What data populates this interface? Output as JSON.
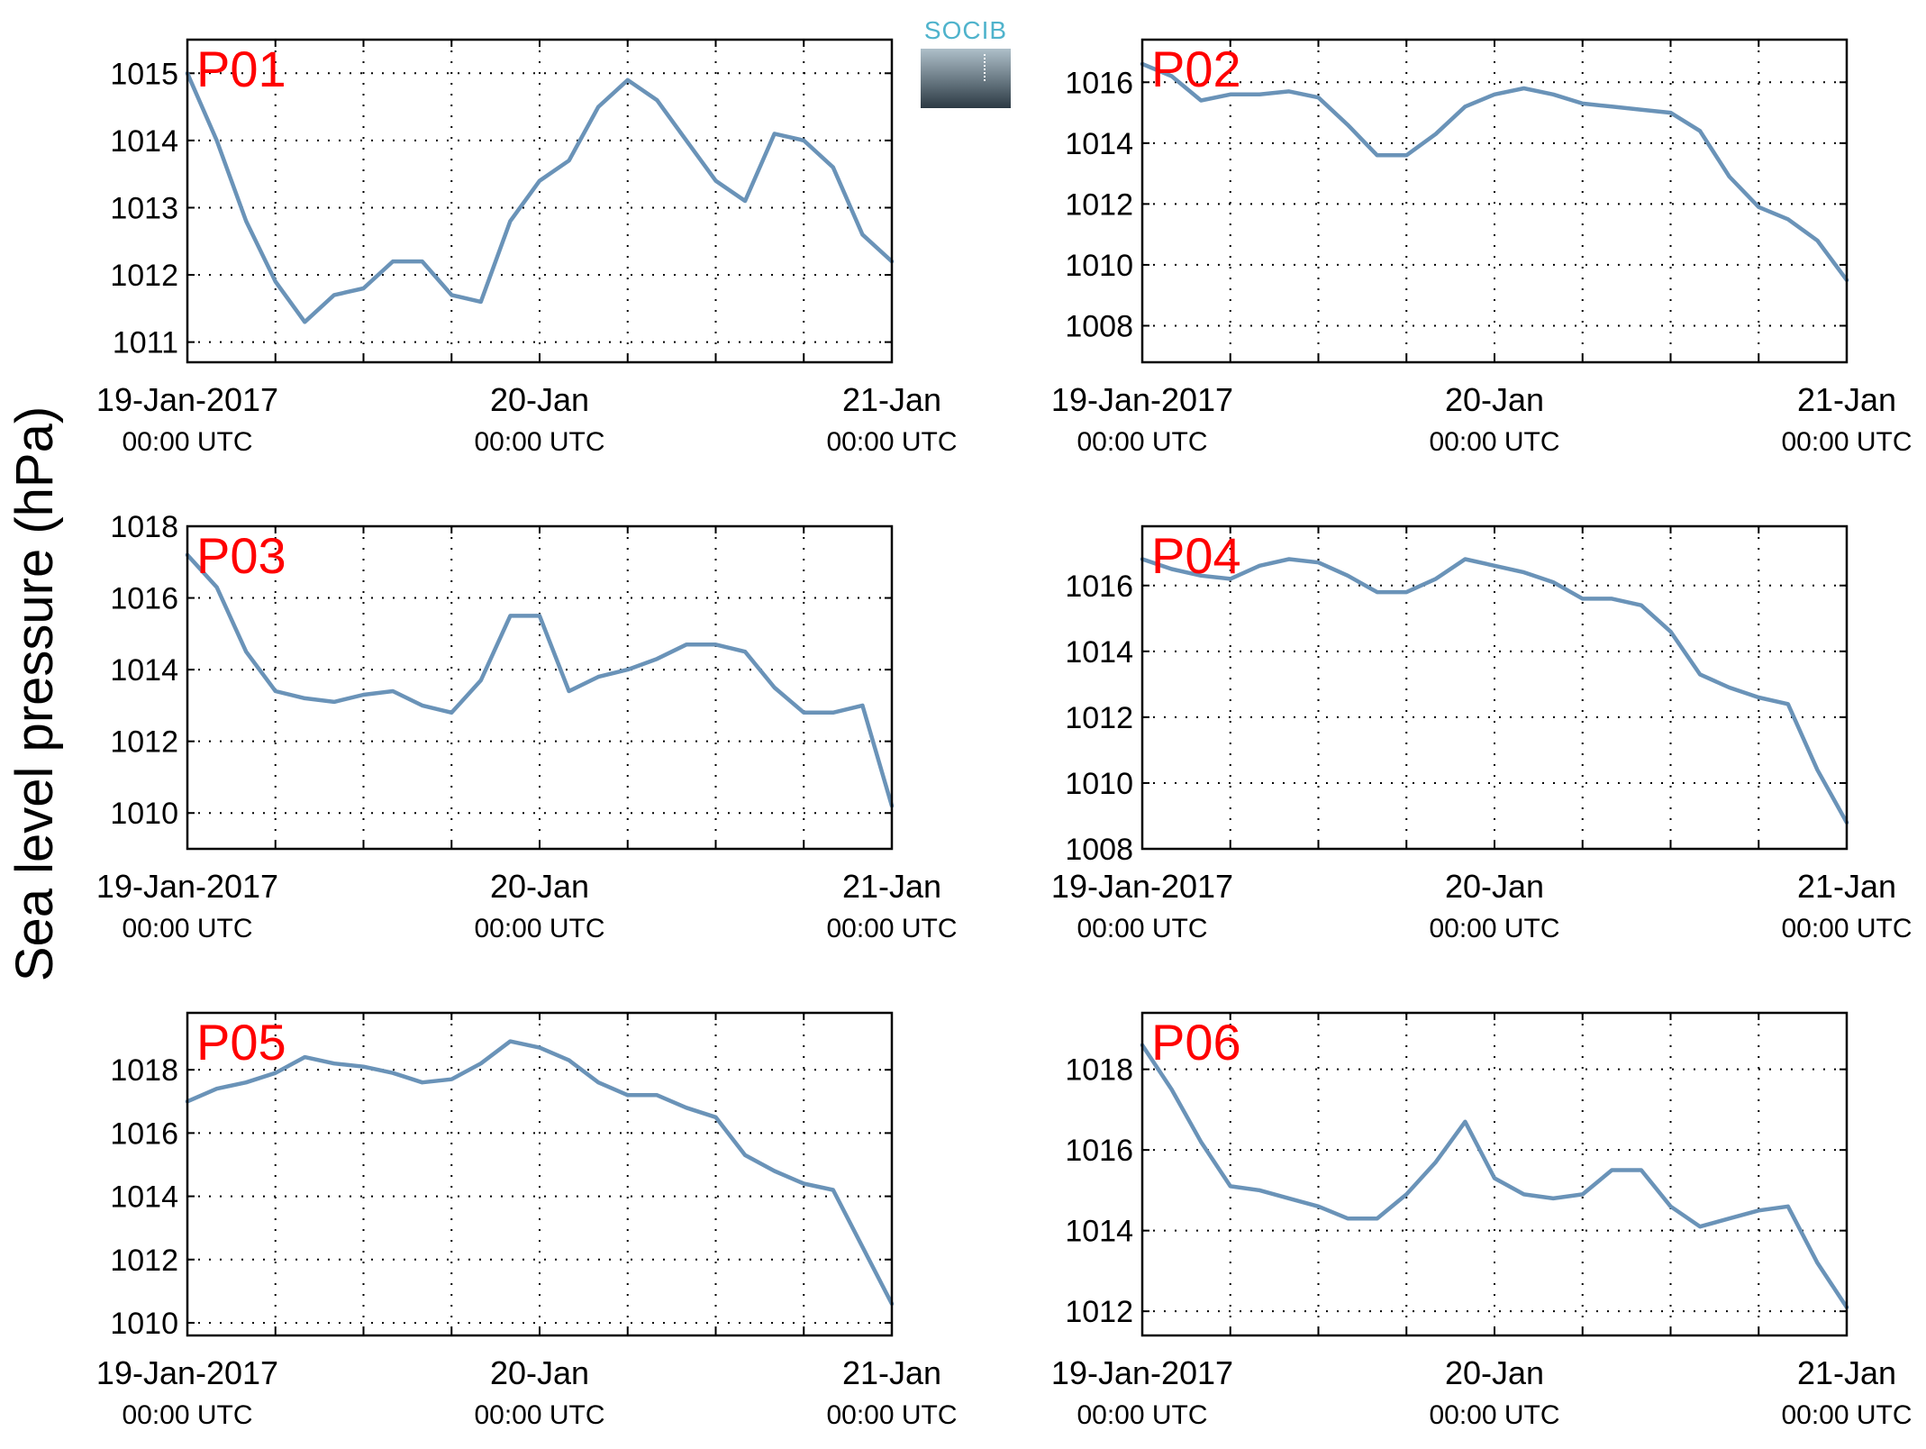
{
  "logo": {
    "text": "SOCIB"
  },
  "ylabel": "Sea level pressure (hPa)",
  "colors": {
    "line": "#6a93b8",
    "panel_label": "#ff0000",
    "axis": "#000000",
    "grid": "#000000"
  },
  "chart_data": [
    {
      "type": "line",
      "title": "P01",
      "x_tick_labels": [
        {
          "date": "19-Jan-2017",
          "time": "00:00 UTC"
        },
        {
          "date": "20-Jan",
          "time": "00:00 UTC"
        },
        {
          "date": "21-Jan",
          "time": "00:00 UTC"
        }
      ],
      "xlim": [
        "2017-01-19T00:00",
        "2017-01-21T00:00"
      ],
      "ylim": [
        1010.7,
        1015.5
      ],
      "yticks": [
        1011,
        1012,
        1013,
        1014,
        1015
      ],
      "grid": true,
      "series": [
        {
          "x": [
            "2017-01-19T00:00",
            "2017-01-19T02:00",
            "2017-01-19T04:00",
            "2017-01-19T06:00",
            "2017-01-19T08:00",
            "2017-01-19T10:00",
            "2017-01-19T12:00",
            "2017-01-19T14:00",
            "2017-01-19T16:00",
            "2017-01-19T18:00",
            "2017-01-19T20:00",
            "2017-01-19T22:00",
            "2017-01-20T00:00",
            "2017-01-20T02:00",
            "2017-01-20T04:00",
            "2017-01-20T06:00",
            "2017-01-20T08:00",
            "2017-01-20T10:00",
            "2017-01-20T12:00",
            "2017-01-20T14:00",
            "2017-01-20T16:00",
            "2017-01-20T18:00",
            "2017-01-20T20:00",
            "2017-01-20T22:00",
            "2017-01-21T00:00"
          ],
          "y": [
            1015.0,
            1014.0,
            1012.8,
            1011.9,
            1011.3,
            1011.7,
            1011.8,
            1012.2,
            1012.2,
            1011.7,
            1011.6,
            1012.8,
            1013.4,
            1013.7,
            1014.5,
            1014.9,
            1014.6,
            1014.0,
            1013.4,
            1013.1,
            1014.1,
            1014.0,
            1013.6,
            1012.6,
            1012.2
          ]
        }
      ]
    },
    {
      "type": "line",
      "title": "P02",
      "x_tick_labels": [
        {
          "date": "19-Jan-2017",
          "time": "00:00 UTC"
        },
        {
          "date": "20-Jan",
          "time": "00:00 UTC"
        },
        {
          "date": "21-Jan",
          "time": "00:00 UTC"
        }
      ],
      "xlim": [
        "2017-01-19T00:00",
        "2017-01-21T00:00"
      ],
      "ylim": [
        1006.8,
        1017.4
      ],
      "yticks": [
        1008,
        1010,
        1012,
        1014,
        1016
      ],
      "grid": true,
      "series": [
        {
          "x": [
            "2017-01-19T00:00",
            "2017-01-19T02:00",
            "2017-01-19T04:00",
            "2017-01-19T06:00",
            "2017-01-19T08:00",
            "2017-01-19T10:00",
            "2017-01-19T12:00",
            "2017-01-19T14:00",
            "2017-01-19T16:00",
            "2017-01-19T18:00",
            "2017-01-19T20:00",
            "2017-01-19T22:00",
            "2017-01-20T00:00",
            "2017-01-20T02:00",
            "2017-01-20T04:00",
            "2017-01-20T06:00",
            "2017-01-20T08:00",
            "2017-01-20T10:00",
            "2017-01-20T12:00",
            "2017-01-20T14:00",
            "2017-01-20T16:00",
            "2017-01-20T18:00",
            "2017-01-20T20:00",
            "2017-01-20T22:00",
            "2017-01-21T00:00"
          ],
          "y": [
            1016.6,
            1016.2,
            1015.4,
            1015.6,
            1015.6,
            1015.7,
            1015.5,
            1014.6,
            1013.6,
            1013.6,
            1014.3,
            1015.2,
            1015.6,
            1015.8,
            1015.6,
            1015.3,
            1015.2,
            1015.1,
            1015.0,
            1014.4,
            1012.9,
            1011.9,
            1011.5,
            1010.8,
            1009.5
          ]
        }
      ]
    },
    {
      "type": "line",
      "title": "P03",
      "x_tick_labels": [
        {
          "date": "19-Jan-2017",
          "time": "00:00 UTC"
        },
        {
          "date": "20-Jan",
          "time": "00:00 UTC"
        },
        {
          "date": "21-Jan",
          "time": "00:00 UTC"
        }
      ],
      "xlim": [
        "2017-01-19T00:00",
        "2017-01-21T00:00"
      ],
      "ylim": [
        1009.0,
        1018.0
      ],
      "yticks": [
        1010,
        1012,
        1014,
        1016,
        1018
      ],
      "grid": true,
      "series": [
        {
          "x": [
            "2017-01-19T00:00",
            "2017-01-19T02:00",
            "2017-01-19T04:00",
            "2017-01-19T06:00",
            "2017-01-19T08:00",
            "2017-01-19T10:00",
            "2017-01-19T12:00",
            "2017-01-19T14:00",
            "2017-01-19T16:00",
            "2017-01-19T18:00",
            "2017-01-19T20:00",
            "2017-01-19T22:00",
            "2017-01-20T00:00",
            "2017-01-20T02:00",
            "2017-01-20T04:00",
            "2017-01-20T06:00",
            "2017-01-20T08:00",
            "2017-01-20T10:00",
            "2017-01-20T12:00",
            "2017-01-20T14:00",
            "2017-01-20T16:00",
            "2017-01-20T18:00",
            "2017-01-20T20:00",
            "2017-01-20T22:00",
            "2017-01-21T00:00"
          ],
          "y": [
            1017.2,
            1016.3,
            1014.5,
            1013.4,
            1013.2,
            1013.1,
            1013.3,
            1013.4,
            1013.0,
            1012.8,
            1013.7,
            1015.5,
            1015.5,
            1013.4,
            1013.8,
            1014.0,
            1014.3,
            1014.7,
            1014.7,
            1014.5,
            1013.5,
            1012.8,
            1012.8,
            1013.0,
            1010.2
          ]
        }
      ]
    },
    {
      "type": "line",
      "title": "P04",
      "x_tick_labels": [
        {
          "date": "19-Jan-2017",
          "time": "00:00 UTC"
        },
        {
          "date": "20-Jan",
          "time": "00:00 UTC"
        },
        {
          "date": "21-Jan",
          "time": "00:00 UTC"
        }
      ],
      "xlim": [
        "2017-01-19T00:00",
        "2017-01-21T00:00"
      ],
      "ylim": [
        1008.0,
        1017.8
      ],
      "yticks": [
        1008,
        1010,
        1012,
        1014,
        1016
      ],
      "grid": true,
      "series": [
        {
          "x": [
            "2017-01-19T00:00",
            "2017-01-19T02:00",
            "2017-01-19T04:00",
            "2017-01-19T06:00",
            "2017-01-19T08:00",
            "2017-01-19T10:00",
            "2017-01-19T12:00",
            "2017-01-19T14:00",
            "2017-01-19T16:00",
            "2017-01-19T18:00",
            "2017-01-19T20:00",
            "2017-01-19T22:00",
            "2017-01-20T00:00",
            "2017-01-20T02:00",
            "2017-01-20T04:00",
            "2017-01-20T06:00",
            "2017-01-20T08:00",
            "2017-01-20T10:00",
            "2017-01-20T12:00",
            "2017-01-20T14:00",
            "2017-01-20T16:00",
            "2017-01-20T18:00",
            "2017-01-20T20:00",
            "2017-01-20T22:00",
            "2017-01-21T00:00"
          ],
          "y": [
            1016.8,
            1016.5,
            1016.3,
            1016.2,
            1016.6,
            1016.8,
            1016.7,
            1016.3,
            1015.8,
            1015.8,
            1016.2,
            1016.8,
            1016.6,
            1016.4,
            1016.1,
            1015.6,
            1015.6,
            1015.4,
            1014.6,
            1013.3,
            1012.9,
            1012.6,
            1012.4,
            1010.4,
            1008.8
          ]
        }
      ]
    },
    {
      "type": "line",
      "title": "P05",
      "x_tick_labels": [
        {
          "date": "19-Jan-2017",
          "time": "00:00 UTC"
        },
        {
          "date": "20-Jan",
          "time": "00:00 UTC"
        },
        {
          "date": "21-Jan",
          "time": "00:00 UTC"
        }
      ],
      "xlim": [
        "2017-01-19T00:00",
        "2017-01-21T00:00"
      ],
      "ylim": [
        1009.6,
        1019.8
      ],
      "yticks": [
        1010,
        1012,
        1014,
        1016,
        1018
      ],
      "grid": true,
      "series": [
        {
          "x": [
            "2017-01-19T00:00",
            "2017-01-19T02:00",
            "2017-01-19T04:00",
            "2017-01-19T06:00",
            "2017-01-19T08:00",
            "2017-01-19T10:00",
            "2017-01-19T12:00",
            "2017-01-19T14:00",
            "2017-01-19T16:00",
            "2017-01-19T18:00",
            "2017-01-19T20:00",
            "2017-01-19T22:00",
            "2017-01-20T00:00",
            "2017-01-20T02:00",
            "2017-01-20T04:00",
            "2017-01-20T06:00",
            "2017-01-20T08:00",
            "2017-01-20T10:00",
            "2017-01-20T12:00",
            "2017-01-20T14:00",
            "2017-01-20T16:00",
            "2017-01-20T18:00",
            "2017-01-20T20:00",
            "2017-01-20T22:00",
            "2017-01-21T00:00"
          ],
          "y": [
            1017.0,
            1017.4,
            1017.6,
            1017.9,
            1018.4,
            1018.2,
            1018.1,
            1017.9,
            1017.6,
            1017.7,
            1018.2,
            1018.9,
            1018.7,
            1018.3,
            1017.6,
            1017.2,
            1017.2,
            1016.8,
            1016.5,
            1015.3,
            1014.8,
            1014.4,
            1014.2,
            1012.4,
            1010.6
          ]
        }
      ]
    },
    {
      "type": "line",
      "title": "P06",
      "x_tick_labels": [
        {
          "date": "19-Jan-2017",
          "time": "00:00 UTC"
        },
        {
          "date": "20-Jan",
          "time": "00:00 UTC"
        },
        {
          "date": "21-Jan",
          "time": "00:00 UTC"
        }
      ],
      "xlim": [
        "2017-01-19T00:00",
        "2017-01-21T00:00"
      ],
      "ylim": [
        1011.4,
        1019.4
      ],
      "yticks": [
        1012,
        1014,
        1016,
        1018
      ],
      "grid": true,
      "series": [
        {
          "x": [
            "2017-01-19T00:00",
            "2017-01-19T02:00",
            "2017-01-19T04:00",
            "2017-01-19T06:00",
            "2017-01-19T08:00",
            "2017-01-19T10:00",
            "2017-01-19T12:00",
            "2017-01-19T14:00",
            "2017-01-19T16:00",
            "2017-01-19T18:00",
            "2017-01-19T20:00",
            "2017-01-19T22:00",
            "2017-01-20T00:00",
            "2017-01-20T02:00",
            "2017-01-20T04:00",
            "2017-01-20T06:00",
            "2017-01-20T08:00",
            "2017-01-20T10:00",
            "2017-01-20T12:00",
            "2017-01-20T14:00",
            "2017-01-20T16:00",
            "2017-01-20T18:00",
            "2017-01-20T20:00",
            "2017-01-20T22:00",
            "2017-01-21T00:00"
          ],
          "y": [
            1018.6,
            1017.5,
            1016.2,
            1015.1,
            1015.0,
            1014.8,
            1014.6,
            1014.3,
            1014.3,
            1014.9,
            1015.7,
            1016.7,
            1015.3,
            1014.9,
            1014.8,
            1014.9,
            1015.5,
            1015.5,
            1014.6,
            1014.1,
            1014.3,
            1014.5,
            1014.6,
            1013.2,
            1012.1
          ]
        }
      ]
    }
  ]
}
